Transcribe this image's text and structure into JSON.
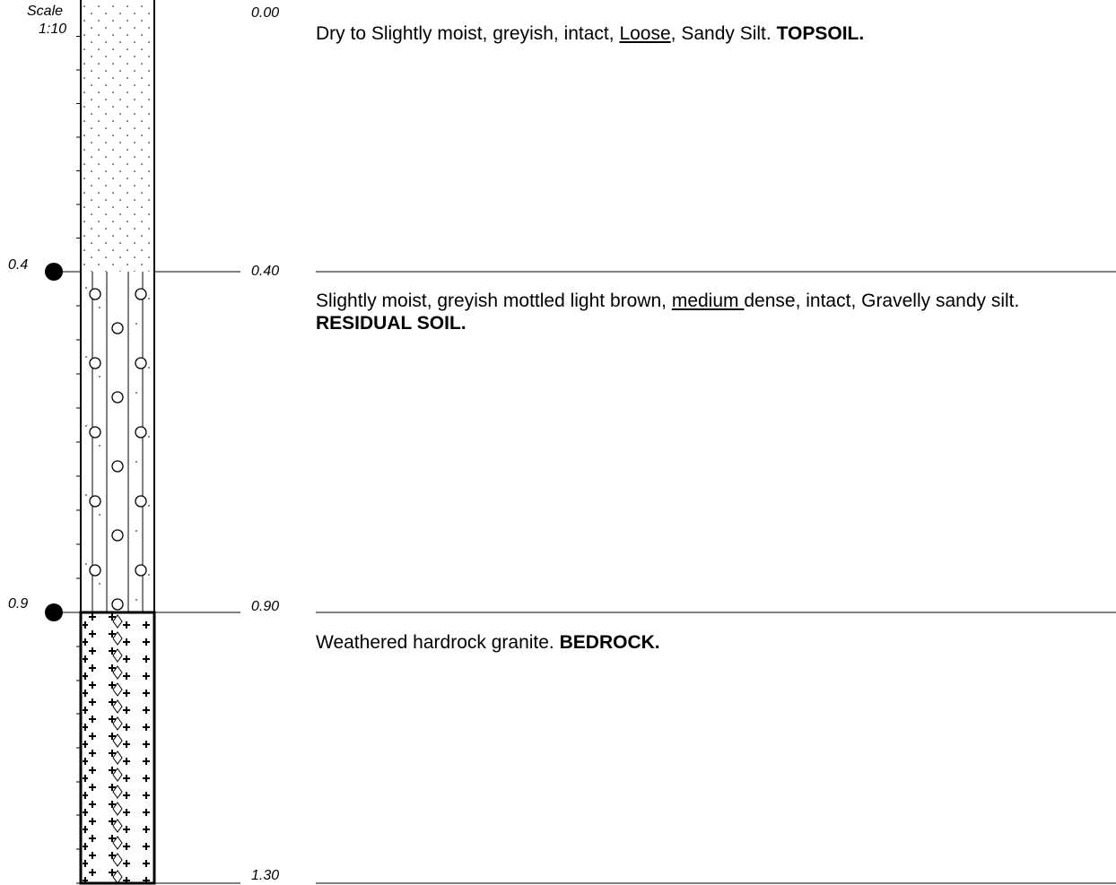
{
  "scale": {
    "label": "Scale",
    "ratio": "1:10"
  },
  "layers": [
    {
      "top": "0.00",
      "description": [
        "Dry to Slightly moist, greyish, intact, ",
        "Loose",
        ", Sandy Silt. ",
        "TOPSOIL."
      ]
    },
    {
      "top": "0.40",
      "description": [
        "Slightly moist, greyish mottled light brown, ",
        "medium ",
        "dense, intact, Gravelly sandy silt. ",
        "RESIDUAL SOIL."
      ]
    },
    {
      "top": "0.90",
      "description": [
        "Weathered hardrock granite. ",
        "",
        "",
        "BEDROCK."
      ]
    }
  ],
  "bottom_depth": "1.30",
  "samples": [
    {
      "depth": "0.4"
    },
    {
      "depth": "0.9"
    }
  ]
}
